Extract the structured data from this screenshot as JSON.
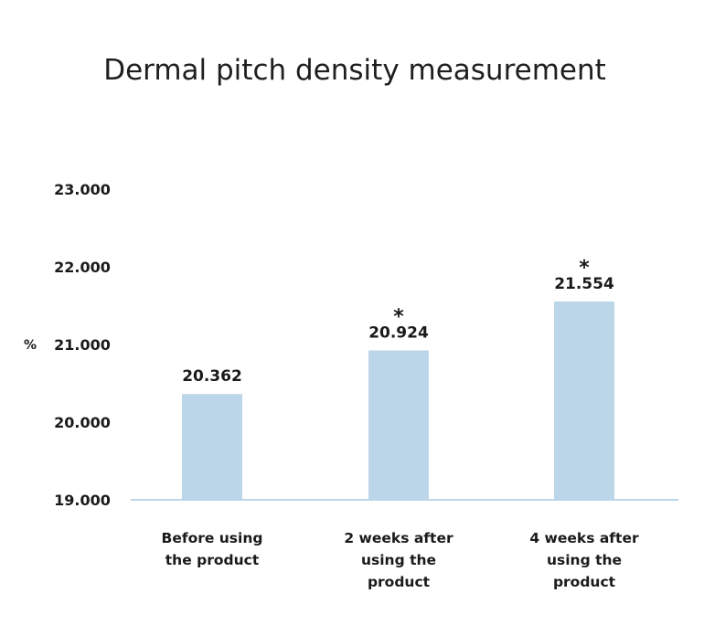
{
  "chart_data": {
    "type": "bar",
    "title": "Dermal pitch density measurement",
    "ylabel": "%",
    "xlabel": "",
    "ylim": [
      19,
      23
    ],
    "yticks": [
      "19.000",
      "20.000",
      "21.000",
      "22.000",
      "23.000"
    ],
    "grid": false,
    "bar_color": "#bcd6e9",
    "axis_color": "#bcd6e9",
    "categories": [
      [
        "Before using",
        "the product"
      ],
      [
        "2 weeks after",
        "using the",
        "product"
      ],
      [
        "4 weeks after",
        "using the",
        "product"
      ]
    ],
    "values": [
      20.362,
      20.924,
      21.554
    ],
    "data_labels": [
      "20.362",
      "20.924",
      "21.554"
    ],
    "significance": [
      "",
      "*",
      "*"
    ]
  }
}
